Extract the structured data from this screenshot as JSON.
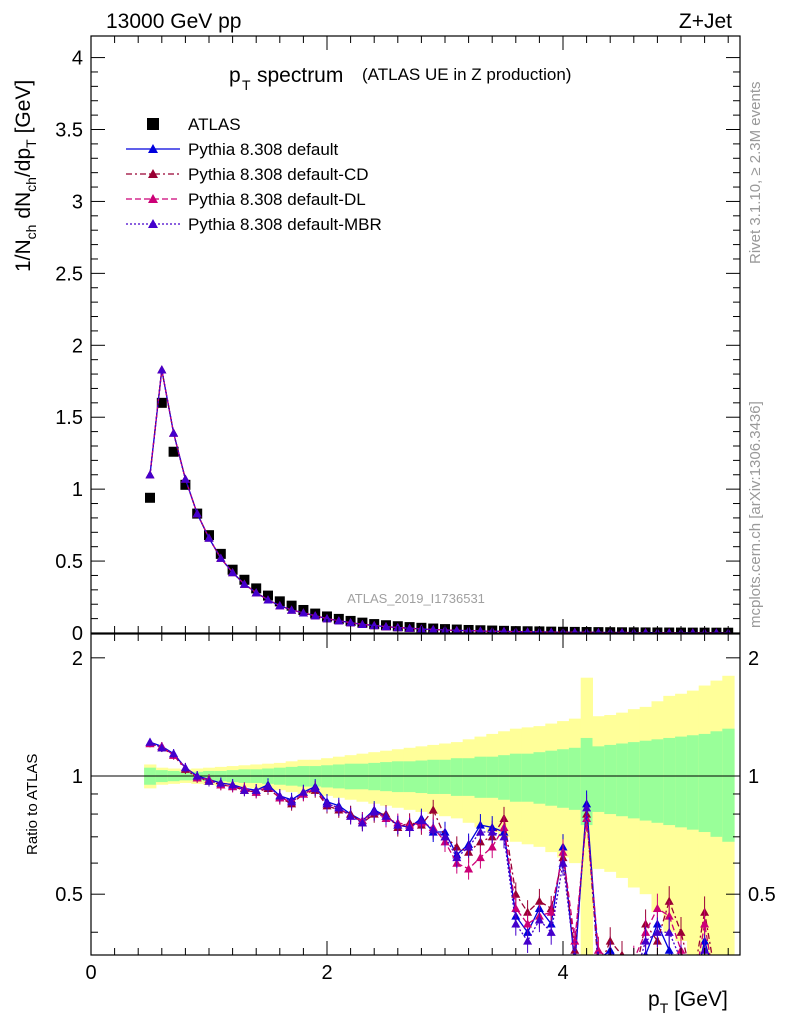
{
  "header": {
    "energy_label": "13000 GeV pp",
    "process_label": "Z+Jet",
    "plot_title_main": "spectrum",
    "plot_title_sub": "(ATLAS UE in Z production)",
    "analysis_id": "ATLAS_2019_I1736531",
    "rivet_label": "Rivet 3.1.10, ≥ 2.3M events",
    "source_label": "mcplots.cern.ch [arXiv:1306.3436]"
  },
  "chart_data": [
    {
      "type": "scatter",
      "panel": "main",
      "ylabel": "1/N_ch dN_ch/dp_T [GeV]",
      "xlim": [
        0,
        5.5
      ],
      "ylim": [
        0,
        4.15
      ],
      "yticks": [
        "0",
        "0.5",
        "1",
        "1.5",
        "2",
        "2.5",
        "3",
        "3.5",
        "4"
      ],
      "legend_position": "top-left",
      "x": [
        0.5,
        0.6,
        0.7,
        0.8,
        0.9,
        1.0,
        1.1,
        1.2,
        1.3,
        1.4,
        1.5,
        1.6,
        1.7,
        1.8,
        1.9,
        2.0,
        2.1,
        2.2,
        2.3,
        2.4,
        2.5,
        2.6,
        2.7,
        2.8,
        2.9,
        3.0,
        3.1,
        3.2,
        3.3,
        3.4,
        3.5,
        3.6,
        3.7,
        3.8,
        3.9,
        4.0,
        4.1,
        4.2,
        4.3,
        4.4,
        4.5,
        4.6,
        4.7,
        4.8,
        4.9,
        5.0,
        5.1,
        5.2,
        5.3,
        5.4
      ],
      "series": [
        {
          "name": "ATLAS",
          "color": "#000000",
          "marker": "square",
          "values": [
            0.94,
            1.6,
            1.26,
            1.03,
            0.83,
            0.68,
            0.55,
            0.44,
            0.37,
            0.31,
            0.26,
            0.22,
            0.19,
            0.16,
            0.135,
            0.115,
            0.098,
            0.084,
            0.072,
            0.062,
            0.054,
            0.047,
            0.041,
            0.036,
            0.031,
            0.027,
            0.024,
            0.021,
            0.019,
            0.017,
            0.015,
            0.013,
            0.012,
            0.011,
            0.0095,
            0.0085,
            0.0076,
            0.0068,
            0.0061,
            0.0055,
            0.005,
            0.0045,
            0.004,
            0.0036,
            0.0033,
            0.003,
            0.0027,
            0.0025,
            0.0023,
            0.0021
          ]
        },
        {
          "name": "Pythia 8.308 default",
          "color": "#0000dd",
          "marker": "triangle",
          "line": "solid",
          "values": [
            1.1,
            1.83,
            1.39,
            1.07,
            0.83,
            0.66,
            0.52,
            0.42,
            0.34,
            0.28,
            0.23,
            0.19,
            0.16,
            0.14,
            0.12,
            0.1,
            0.085,
            0.072,
            0.06,
            0.052,
            0.044,
            0.038,
            0.033,
            0.028,
            0.024,
            0.021,
            0.018,
            0.016,
            0.014,
            0.012,
            0.011,
            0.0095,
            0.0082,
            0.0071,
            0.0062,
            0.0055,
            0.0048,
            0.0042,
            0.0037,
            0.0033,
            0.003,
            0.0027,
            0.0024,
            0.0021,
            0.0019,
            0.0017,
            0.0015,
            0.0014,
            0.0013,
            0.0012
          ]
        },
        {
          "name": "Pythia 8.308 default-CD",
          "color": "#990033",
          "marker": "triangle",
          "line": "dashdot",
          "values": [
            1.1,
            1.83,
            1.39,
            1.07,
            0.83,
            0.66,
            0.52,
            0.42,
            0.34,
            0.28,
            0.23,
            0.19,
            0.16,
            0.14,
            0.12,
            0.1,
            0.085,
            0.072,
            0.06,
            0.052,
            0.044,
            0.038,
            0.033,
            0.028,
            0.024,
            0.021,
            0.018,
            0.016,
            0.014,
            0.012,
            0.011,
            0.0095,
            0.0082,
            0.0071,
            0.0062,
            0.0055,
            0.0048,
            0.0042,
            0.0037,
            0.0033,
            0.003,
            0.0027,
            0.0024,
            0.0021,
            0.0019,
            0.0017,
            0.0015,
            0.0014,
            0.0013,
            0.0012
          ]
        },
        {
          "name": "Pythia 8.308 default-DL",
          "color": "#cc0077",
          "marker": "triangle",
          "line": "dashed",
          "values": [
            1.1,
            1.83,
            1.39,
            1.07,
            0.83,
            0.66,
            0.52,
            0.42,
            0.34,
            0.28,
            0.23,
            0.19,
            0.16,
            0.14,
            0.12,
            0.1,
            0.085,
            0.072,
            0.06,
            0.052,
            0.044,
            0.038,
            0.033,
            0.028,
            0.024,
            0.021,
            0.018,
            0.016,
            0.014,
            0.012,
            0.011,
            0.0095,
            0.0082,
            0.0071,
            0.0062,
            0.0055,
            0.0048,
            0.0042,
            0.0037,
            0.0033,
            0.003,
            0.0027,
            0.0024,
            0.0021,
            0.0019,
            0.0017,
            0.0015,
            0.0014,
            0.0013,
            0.0012
          ]
        },
        {
          "name": "Pythia 8.308 default-MBR",
          "color": "#4400cc",
          "marker": "triangle",
          "line": "dotted",
          "values": [
            1.1,
            1.83,
            1.39,
            1.07,
            0.83,
            0.66,
            0.52,
            0.42,
            0.34,
            0.28,
            0.23,
            0.19,
            0.16,
            0.14,
            0.12,
            0.1,
            0.085,
            0.072,
            0.06,
            0.052,
            0.044,
            0.038,
            0.033,
            0.028,
            0.024,
            0.021,
            0.018,
            0.016,
            0.014,
            0.012,
            0.011,
            0.0095,
            0.0082,
            0.0071,
            0.0062,
            0.0055,
            0.0048,
            0.0042,
            0.0037,
            0.0033,
            0.003,
            0.0027,
            0.0024,
            0.0021,
            0.0019,
            0.0017,
            0.0015,
            0.0014,
            0.0013,
            0.0012
          ]
        }
      ]
    },
    {
      "type": "line",
      "panel": "ratio",
      "ylabel": "Ratio to ATLAS",
      "xlabel": "p_T [GeV]",
      "xlim": [
        0,
        5.5
      ],
      "ylim": [
        0.35,
        2.3
      ],
      "xticks": [
        "0",
        "2",
        "4"
      ],
      "yticks": [
        "0.5",
        "1",
        "2"
      ],
      "x": [
        0.5,
        0.6,
        0.7,
        0.8,
        0.9,
        1.0,
        1.1,
        1.2,
        1.3,
        1.4,
        1.5,
        1.6,
        1.7,
        1.8,
        1.9,
        2.0,
        2.1,
        2.2,
        2.3,
        2.4,
        2.5,
        2.6,
        2.7,
        2.8,
        2.9,
        3.0,
        3.1,
        3.2,
        3.3,
        3.4,
        3.5,
        3.6,
        3.7,
        3.8,
        3.9,
        4.0,
        4.1,
        4.2,
        4.3,
        4.4,
        4.5,
        4.6,
        4.7,
        4.8,
        4.9,
        5.0,
        5.1,
        5.2,
        5.3,
        5.4
      ],
      "band_stat_halfwidth": [
        0.05,
        0.035,
        0.03,
        0.025,
        0.025,
        0.03,
        0.03,
        0.035,
        0.04,
        0.04,
        0.045,
        0.05,
        0.055,
        0.06,
        0.06,
        0.065,
        0.07,
        0.075,
        0.075,
        0.08,
        0.085,
        0.09,
        0.09,
        0.095,
        0.1,
        0.1,
        0.11,
        0.11,
        0.12,
        0.12,
        0.13,
        0.14,
        0.14,
        0.15,
        0.16,
        0.17,
        0.18,
        0.25,
        0.19,
        0.2,
        0.21,
        0.22,
        0.23,
        0.24,
        0.25,
        0.26,
        0.27,
        0.28,
        0.3,
        0.32
      ],
      "band_total_halfwidth": [
        0.07,
        0.05,
        0.045,
        0.04,
        0.045,
        0.05,
        0.055,
        0.06,
        0.065,
        0.07,
        0.075,
        0.08,
        0.09,
        0.1,
        0.1,
        0.11,
        0.12,
        0.13,
        0.14,
        0.15,
        0.16,
        0.17,
        0.18,
        0.19,
        0.2,
        0.21,
        0.22,
        0.24,
        0.26,
        0.28,
        0.3,
        0.32,
        0.33,
        0.34,
        0.36,
        0.38,
        0.4,
        0.78,
        0.42,
        0.43,
        0.45,
        0.48,
        0.5,
        0.55,
        0.6,
        0.62,
        0.65,
        0.7,
        0.75,
        0.8
      ],
      "series": [
        {
          "name": "Pythia 8.308 default",
          "color": "#0000dd",
          "values": [
            1.22,
            1.19,
            1.14,
            1.05,
            1.0,
            0.98,
            0.96,
            0.95,
            0.93,
            0.92,
            0.95,
            0.89,
            0.87,
            0.91,
            0.94,
            0.86,
            0.84,
            0.8,
            0.77,
            0.82,
            0.79,
            0.75,
            0.74,
            0.78,
            0.72,
            0.72,
            0.63,
            0.67,
            0.75,
            0.74,
            0.72,
            0.44,
            0.4,
            0.46,
            0.42,
            0.66,
            0.33,
            0.85,
            0.34,
            0.36,
            0.33,
            0.3,
            0.35,
            0.42,
            0.36,
            0.32,
            0.28,
            0.38,
            0.3,
            0.26
          ]
        },
        {
          "name": "Pythia 8.308 default-CD",
          "color": "#990033",
          "values": [
            1.21,
            1.18,
            1.13,
            1.04,
            0.99,
            0.97,
            0.95,
            0.94,
            0.92,
            0.91,
            0.93,
            0.88,
            0.85,
            0.9,
            0.92,
            0.84,
            0.82,
            0.8,
            0.76,
            0.8,
            0.8,
            0.74,
            0.76,
            0.75,
            0.82,
            0.7,
            0.66,
            0.64,
            0.68,
            0.7,
            0.78,
            0.5,
            0.45,
            0.48,
            0.46,
            0.62,
            0.36,
            0.8,
            0.32,
            0.38,
            0.35,
            0.3,
            0.42,
            0.38,
            0.48,
            0.4,
            0.3,
            0.45,
            0.3,
            0.28
          ]
        },
        {
          "name": "Pythia 8.308 default-DL",
          "color": "#cc0077",
          "values": [
            1.21,
            1.19,
            1.13,
            1.05,
            0.99,
            0.98,
            0.95,
            0.94,
            0.93,
            0.91,
            0.94,
            0.88,
            0.86,
            0.9,
            0.93,
            0.85,
            0.83,
            0.79,
            0.77,
            0.81,
            0.78,
            0.76,
            0.75,
            0.76,
            0.74,
            0.68,
            0.6,
            0.58,
            0.62,
            0.66,
            0.74,
            0.46,
            0.42,
            0.44,
            0.45,
            0.64,
            0.38,
            0.78,
            0.36,
            0.34,
            0.32,
            0.34,
            0.4,
            0.46,
            0.44,
            0.36,
            0.28,
            0.42,
            0.28,
            0.27
          ]
        },
        {
          "name": "Pythia 8.308 default-MBR",
          "color": "#4400cc",
          "values": [
            1.22,
            1.18,
            1.14,
            1.05,
            1.0,
            0.97,
            0.96,
            0.95,
            0.92,
            0.92,
            0.94,
            0.89,
            0.86,
            0.91,
            0.93,
            0.85,
            0.83,
            0.79,
            0.76,
            0.81,
            0.79,
            0.75,
            0.74,
            0.77,
            0.73,
            0.7,
            0.62,
            0.66,
            0.72,
            0.72,
            0.7,
            0.42,
            0.38,
            0.43,
            0.4,
            0.6,
            0.34,
            0.83,
            0.33,
            0.35,
            0.32,
            0.3,
            0.38,
            0.4,
            0.4,
            0.34,
            0.28,
            0.36,
            0.29,
            0.26
          ]
        }
      ]
    }
  ]
}
